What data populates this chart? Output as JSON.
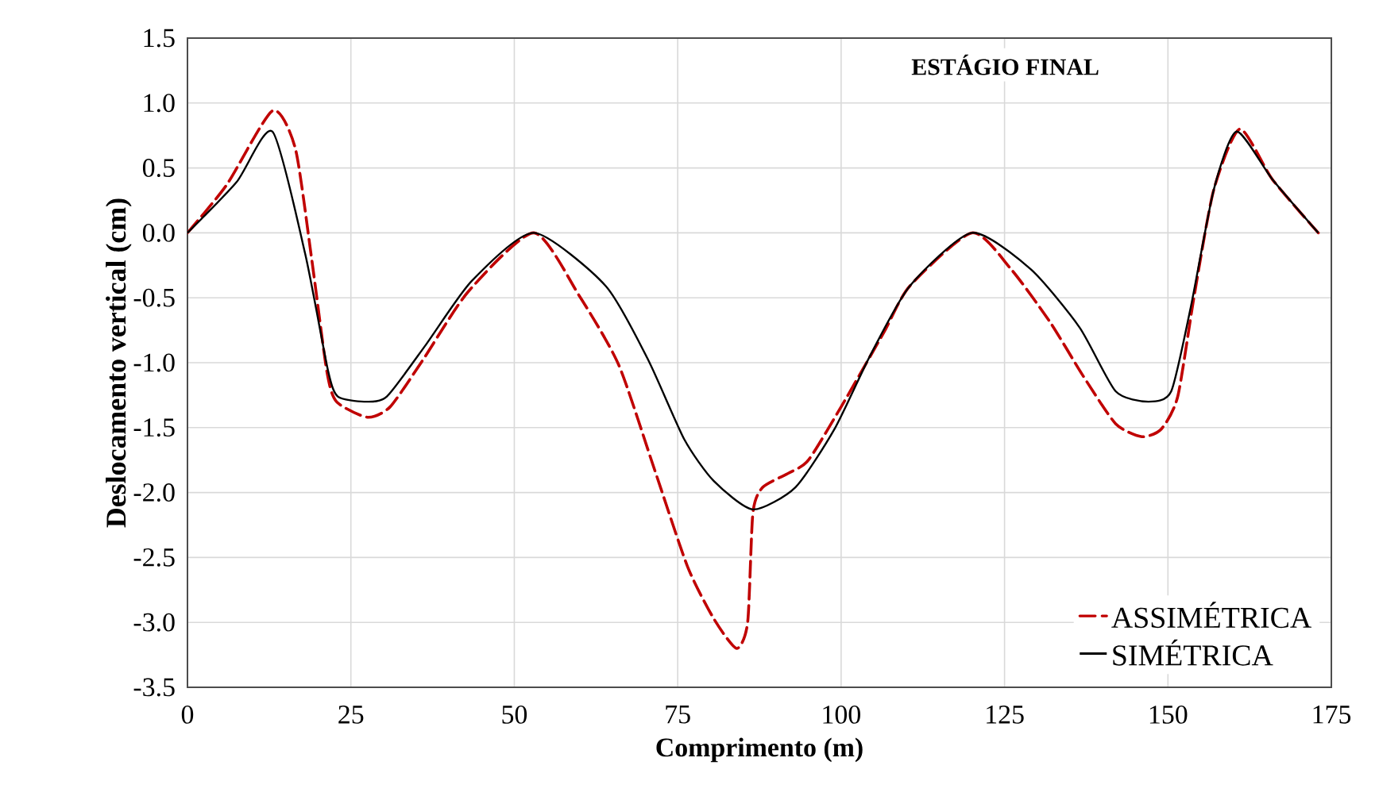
{
  "chart_data": {
    "type": "line",
    "title": "ESTÁGIO FINAL",
    "xlabel": "Comprimento (m)",
    "ylabel": "Deslocamento vertical (cm)",
    "xlim": [
      0,
      175
    ],
    "xticks": [
      0,
      25,
      50,
      75,
      100,
      125,
      150,
      175
    ],
    "ylim": [
      -3.5,
      1.5
    ],
    "yticks": [
      -3.5,
      {
        "value": -3,
        "label": "-3.0"
      },
      -2.5,
      {
        "value": -2,
        "label": "-2.0"
      },
      -1.5,
      {
        "value": -1,
        "label": "-1.0"
      },
      -0.5,
      {
        "value": 0,
        "label": "0.0"
      },
      0.5,
      {
        "value": 1,
        "label": "1.0"
      },
      1.5
    ],
    "grid": true,
    "legend": "bottom right",
    "marker": "none",
    "series": [
      {
        "name": "ASSIMÉTRICA",
        "color": "#c00000",
        "line_style": "dashed",
        "x": [
          0,
          6,
          13,
          16.5,
          19,
          21.3,
          22.8,
          27.5,
          31,
          36,
          43,
          53,
          60,
          66,
          71.5,
          76.5,
          80.5,
          84,
          85.7,
          86.5,
          88,
          92,
          95,
          100,
          106.5,
          110.5,
          120,
          126,
          132,
          137,
          142,
          146,
          149,
          151.5,
          154,
          157,
          161,
          166,
          173
        ],
        "values": [
          0,
          0.37,
          0.94,
          0.65,
          -0.2,
          -1.06,
          -1.3,
          -1.42,
          -1.34,
          -0.98,
          -0.45,
          0,
          -0.49,
          -1.02,
          -1.83,
          -2.57,
          -2.97,
          -3.2,
          -3.0,
          -2.16,
          -1.96,
          -1.85,
          -1.75,
          -1.34,
          -0.77,
          -0.41,
          0,
          -0.28,
          -0.69,
          -1.1,
          -1.47,
          -1.57,
          -1.51,
          -1.26,
          -0.49,
          0.33,
          0.8,
          0.41,
          0
        ]
      },
      {
        "name": "SIMÉTRICA",
        "color": "#000000",
        "line_style": "solid",
        "x": [
          0,
          7.5,
          13,
          18,
          21.5,
          23,
          27,
          30.5,
          36.5,
          43.5,
          53,
          64,
          70.5,
          76,
          80.5,
          86.5,
          93,
          99,
          104.5,
          110.5,
          120,
          129,
          136.5,
          142,
          147,
          150.5,
          153.5,
          157,
          160.5,
          166,
          173
        ],
        "values": [
          0,
          0.39,
          0.78,
          -0.16,
          -1.06,
          -1.26,
          -1.3,
          -1.26,
          -0.86,
          -0.37,
          0,
          -0.41,
          -0.98,
          -1.59,
          -1.91,
          -2.13,
          -1.96,
          -1.51,
          -0.94,
          -0.41,
          0,
          -0.28,
          -0.73,
          -1.22,
          -1.3,
          -1.22,
          -0.57,
          0.33,
          0.78,
          0.41,
          0
        ]
      }
    ]
  }
}
